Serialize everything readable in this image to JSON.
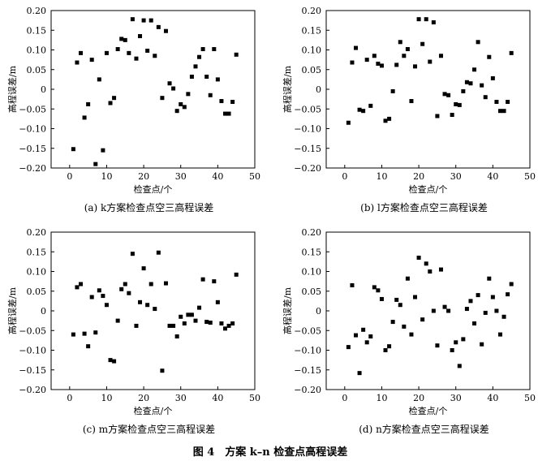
{
  "figure": {
    "title": "图 4　方案 k–n 检查点高程误差"
  },
  "chart_data": [
    {
      "type": "scatter",
      "caption": "(a) k方案检查点空三高程误差",
      "xlabel": "检查点/个",
      "ylabel": "高程误差/m",
      "xlim": [
        -5,
        50
      ],
      "ylim": [
        -0.2,
        0.2
      ],
      "xticks": [
        "0",
        "10",
        "20",
        "30",
        "40",
        "50"
      ],
      "yticks": [
        "0.20",
        "0.15",
        "0.10",
        "0.05",
        "0",
        "−0.05",
        "−0.10",
        "−0.15",
        "−0.20"
      ],
      "points": [
        [
          1,
          -0.152
        ],
        [
          2,
          0.068
        ],
        [
          3,
          0.092
        ],
        [
          4,
          -0.072
        ],
        [
          5,
          -0.038
        ],
        [
          6,
          0.075
        ],
        [
          7,
          -0.19
        ],
        [
          8,
          0.025
        ],
        [
          9,
          -0.155
        ],
        [
          10,
          0.092
        ],
        [
          11,
          -0.035
        ],
        [
          12,
          -0.022
        ],
        [
          13,
          0.102
        ],
        [
          14,
          0.128
        ],
        [
          15,
          0.125
        ],
        [
          16,
          0.092
        ],
        [
          17,
          0.178
        ],
        [
          18,
          0.078
        ],
        [
          19,
          0.135
        ],
        [
          20,
          0.175
        ],
        [
          21,
          0.098
        ],
        [
          22,
          0.175
        ],
        [
          23,
          0.085
        ],
        [
          24,
          0.158
        ],
        [
          25,
          -0.022
        ],
        [
          26,
          0.148
        ],
        [
          27,
          0.015
        ],
        [
          28,
          0.002
        ],
        [
          29,
          -0.055
        ],
        [
          30,
          -0.038
        ],
        [
          31,
          -0.045
        ],
        [
          32,
          -0.012
        ],
        [
          33,
          0.032
        ],
        [
          34,
          0.058
        ],
        [
          35,
          0.082
        ],
        [
          36,
          0.102
        ],
        [
          37,
          0.032
        ],
        [
          38,
          -0.015
        ],
        [
          39,
          0.102
        ],
        [
          40,
          0.025
        ],
        [
          41,
          -0.03
        ],
        [
          42,
          -0.062
        ],
        [
          43,
          -0.062
        ],
        [
          44,
          -0.032
        ],
        [
          45,
          0.088
        ]
      ]
    },
    {
      "type": "scatter",
      "caption": "(b) l方案检查点空三高程误差",
      "xlabel": "检查点/个",
      "ylabel": "高程误差/m",
      "xlim": [
        -5,
        50
      ],
      "ylim": [
        -0.2,
        0.2
      ],
      "xticks": [
        "0",
        "10",
        "20",
        "30",
        "40",
        "50"
      ],
      "yticks": [
        "0.20",
        "0.15",
        "0.10",
        "0.05",
        "0",
        "−0.05",
        "−0.10",
        "−0.15",
        "−0.20"
      ],
      "points": [
        [
          1,
          -0.085
        ],
        [
          2,
          0.068
        ],
        [
          3,
          0.105
        ],
        [
          4,
          -0.052
        ],
        [
          5,
          -0.055
        ],
        [
          6,
          0.075
        ],
        [
          7,
          -0.042
        ],
        [
          8,
          0.085
        ],
        [
          9,
          0.065
        ],
        [
          10,
          0.06
        ],
        [
          11,
          -0.08
        ],
        [
          12,
          -0.075
        ],
        [
          13,
          -0.005
        ],
        [
          14,
          0.062
        ],
        [
          15,
          0.12
        ],
        [
          16,
          0.085
        ],
        [
          17,
          0.102
        ],
        [
          18,
          -0.03
        ],
        [
          19,
          0.058
        ],
        [
          20,
          0.178
        ],
        [
          21,
          0.115
        ],
        [
          22,
          0.178
        ],
        [
          23,
          0.07
        ],
        [
          24,
          0.17
        ],
        [
          25,
          -0.068
        ],
        [
          26,
          0.085
        ],
        [
          27,
          -0.012
        ],
        [
          28,
          -0.015
        ],
        [
          29,
          -0.065
        ],
        [
          30,
          -0.038
        ],
        [
          31,
          -0.04
        ],
        [
          32,
          -0.005
        ],
        [
          33,
          0.018
        ],
        [
          34,
          0.015
        ],
        [
          35,
          0.05
        ],
        [
          36,
          0.12
        ],
        [
          37,
          0.01
        ],
        [
          38,
          -0.02
        ],
        [
          39,
          0.082
        ],
        [
          40,
          0.028
        ],
        [
          41,
          -0.032
        ],
        [
          42,
          -0.055
        ],
        [
          43,
          -0.055
        ],
        [
          44,
          -0.032
        ],
        [
          45,
          0.092
        ]
      ]
    },
    {
      "type": "scatter",
      "caption": "(c) m方案检查点空三高程误差",
      "xlabel": "检查点/个",
      "ylabel": "高程误差/m",
      "xlim": [
        -5,
        50
      ],
      "ylim": [
        -0.2,
        0.2
      ],
      "xticks": [
        "0",
        "10",
        "20",
        "30",
        "40",
        "50"
      ],
      "yticks": [
        "0.20",
        "0.15",
        "0.10",
        "0.05",
        "0",
        "−0.05",
        "−0.10",
        "−0.15",
        "−0.20"
      ],
      "points": [
        [
          1,
          -0.06
        ],
        [
          2,
          0.06
        ],
        [
          3,
          0.068
        ],
        [
          4,
          -0.058
        ],
        [
          5,
          -0.09
        ],
        [
          6,
          0.035
        ],
        [
          7,
          -0.055
        ],
        [
          8,
          0.052
        ],
        [
          9,
          0.038
        ],
        [
          10,
          0.015
        ],
        [
          11,
          -0.125
        ],
        [
          12,
          -0.128
        ],
        [
          13,
          -0.025
        ],
        [
          14,
          0.055
        ],
        [
          15,
          0.068
        ],
        [
          16,
          0.045
        ],
        [
          17,
          0.145
        ],
        [
          18,
          -0.038
        ],
        [
          19,
          0.022
        ],
        [
          20,
          0.108
        ],
        [
          21,
          0.015
        ],
        [
          22,
          0.068
        ],
        [
          23,
          0.005
        ],
        [
          24,
          0.148
        ],
        [
          25,
          -0.152
        ],
        [
          26,
          0.07
        ],
        [
          27,
          -0.038
        ],
        [
          28,
          -0.038
        ],
        [
          29,
          -0.065
        ],
        [
          30,
          -0.015
        ],
        [
          31,
          -0.032
        ],
        [
          32,
          -0.01
        ],
        [
          33,
          -0.01
        ],
        [
          34,
          -0.025
        ],
        [
          35,
          0.008
        ],
        [
          36,
          0.08
        ],
        [
          37,
          -0.028
        ],
        [
          38,
          -0.03
        ],
        [
          39,
          0.075
        ],
        [
          40,
          0.022
        ],
        [
          41,
          -0.032
        ],
        [
          42,
          -0.045
        ],
        [
          43,
          -0.038
        ],
        [
          44,
          -0.032
        ],
        [
          45,
          0.092
        ]
      ]
    },
    {
      "type": "scatter",
      "caption": "(d) n方案检查点空三高程误差",
      "xlabel": "检查点/个",
      "ylabel": "高程误差/m",
      "xlim": [
        -5,
        50
      ],
      "ylim": [
        -0.2,
        0.2
      ],
      "xticks": [
        "0",
        "10",
        "20",
        "30",
        "40",
        "50"
      ],
      "yticks": [
        "0.20",
        "0.15",
        "0.10",
        "0.05",
        "0",
        "−0.05",
        "−0.10",
        "−0.15",
        "−0.20"
      ],
      "points": [
        [
          1,
          -0.092
        ],
        [
          2,
          0.065
        ],
        [
          3,
          -0.062
        ],
        [
          4,
          -0.158
        ],
        [
          5,
          -0.048
        ],
        [
          6,
          -0.08
        ],
        [
          7,
          -0.065
        ],
        [
          8,
          0.06
        ],
        [
          9,
          0.052
        ],
        [
          10,
          0.03
        ],
        [
          11,
          -0.1
        ],
        [
          12,
          -0.09
        ],
        [
          13,
          -0.028
        ],
        [
          14,
          0.028
        ],
        [
          15,
          0.015
        ],
        [
          16,
          -0.04
        ],
        [
          17,
          0.082
        ],
        [
          18,
          -0.06
        ],
        [
          19,
          0.035
        ],
        [
          20,
          0.135
        ],
        [
          21,
          -0.022
        ],
        [
          22,
          0.12
        ],
        [
          23,
          0.1
        ],
        [
          24,
          0.0
        ],
        [
          25,
          -0.088
        ],
        [
          26,
          0.105
        ],
        [
          27,
          0.01
        ],
        [
          28,
          0.0
        ],
        [
          29,
          -0.1
        ],
        [
          30,
          -0.08
        ],
        [
          31,
          -0.14
        ],
        [
          32,
          -0.072
        ],
        [
          33,
          0.005
        ],
        [
          34,
          0.025
        ],
        [
          35,
          -0.032
        ],
        [
          36,
          0.04
        ],
        [
          37,
          -0.085
        ],
        [
          38,
          -0.005
        ],
        [
          39,
          0.082
        ],
        [
          40,
          0.035
        ],
        [
          41,
          0.0
        ],
        [
          42,
          -0.06
        ],
        [
          43,
          -0.015
        ],
        [
          44,
          0.042
        ],
        [
          45,
          0.068
        ]
      ]
    }
  ]
}
